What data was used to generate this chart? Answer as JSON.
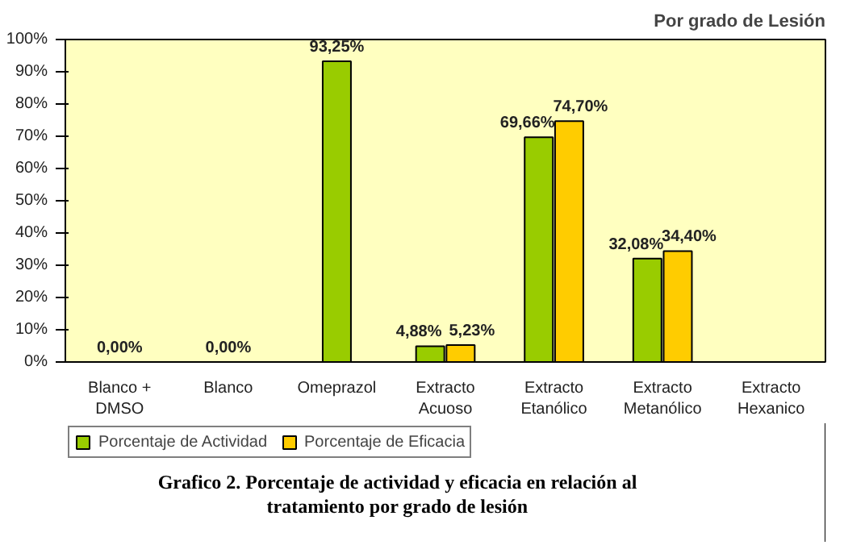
{
  "chart_data": {
    "type": "bar",
    "title": "Por grado de Lesión",
    "categories": [
      "Blanco +\nDMSO",
      "Blanco",
      "Omeprazol",
      "Extracto\nAcuoso",
      "Extracto\nEtanólico",
      "Extracto\nMetanólico",
      "Extracto\nHexanico"
    ],
    "series": [
      {
        "name": "Porcentaje de Actividad",
        "color": "#99cc00",
        "values": [
          0,
          0,
          93.25,
          4.88,
          69.66,
          32.08,
          null
        ],
        "value_labels": [
          "0,00%",
          "0,00%",
          "93,25%",
          "4,88%",
          "69,66%",
          "32,08%",
          null
        ]
      },
      {
        "name": "Porcentaje de Eficacia",
        "color": "#ffcc00",
        "values": [
          null,
          null,
          null,
          5.23,
          74.7,
          34.4,
          null
        ],
        "value_labels": [
          null,
          null,
          null,
          "5,23%",
          "74,70%",
          "34,40%",
          null
        ]
      }
    ],
    "ylim": [
      0,
      100
    ],
    "yticks": [
      {
        "value": 0,
        "label": "0%"
      },
      {
        "value": 10,
        "label": "10%"
      },
      {
        "value": 20,
        "label": "20%"
      },
      {
        "value": 30,
        "label": "30%"
      },
      {
        "value": 40,
        "label": "40%"
      },
      {
        "value": 50,
        "label": "50%"
      },
      {
        "value": 60,
        "label": "60%"
      },
      {
        "value": 70,
        "label": "70%"
      },
      {
        "value": 80,
        "label": "80%"
      },
      {
        "value": 90,
        "label": "90%"
      },
      {
        "value": 100,
        "label": "100%"
      }
    ],
    "grid": false,
    "legend": "bottom left",
    "annotations": [
      "Grafico 2.  Porcentaje de actividad y eficacia en relación al\ntratamiento  por grado de lesión"
    ]
  }
}
